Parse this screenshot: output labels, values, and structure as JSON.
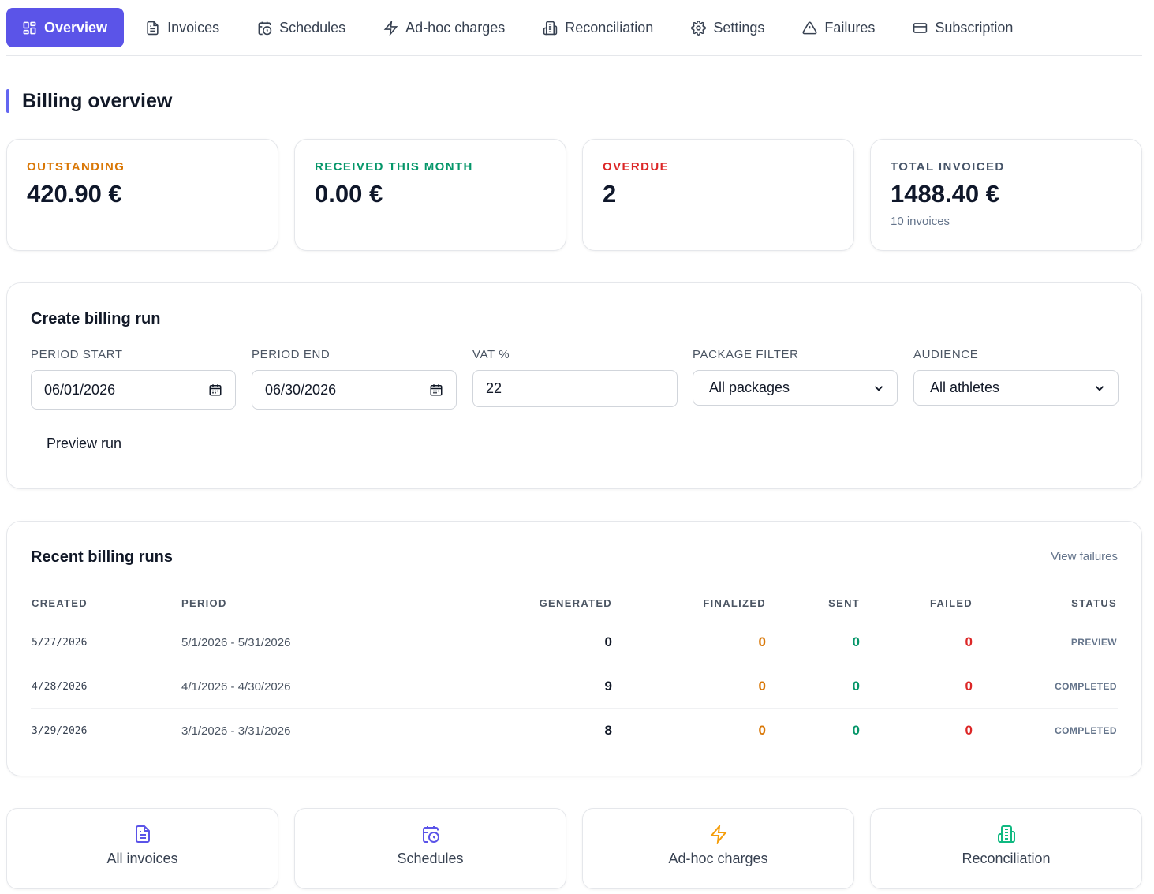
{
  "colors": {
    "accent": "#5b54e8",
    "outstanding": "#d97706",
    "received": "#059669",
    "overdue": "#dc2626",
    "muted": "#475569"
  },
  "tabs": [
    {
      "label": "Overview",
      "icon": "grid-icon",
      "active": true
    },
    {
      "label": "Invoices",
      "icon": "document-icon"
    },
    {
      "label": "Schedules",
      "icon": "calendar-clock-icon"
    },
    {
      "label": "Ad-hoc charges",
      "icon": "lightning-icon"
    },
    {
      "label": "Reconciliation",
      "icon": "building-icon"
    },
    {
      "label": "Settings",
      "icon": "gear-icon"
    },
    {
      "label": "Failures",
      "icon": "warning-icon"
    },
    {
      "label": "Subscription",
      "icon": "card-icon"
    }
  ],
  "page": {
    "title": "Billing overview"
  },
  "stats": [
    {
      "label": "OUTSTANDING",
      "value": "420.90 €",
      "sub": ""
    },
    {
      "label": "RECEIVED THIS MONTH",
      "value": "0.00 €",
      "sub": ""
    },
    {
      "label": "OVERDUE",
      "value": "2",
      "sub": ""
    },
    {
      "label": "TOTAL INVOICED",
      "value": "1488.40 €",
      "sub": "10 invoices"
    }
  ],
  "billing_run": {
    "title": "Create billing run",
    "period_start": {
      "label": "PERIOD START",
      "value": "06/01/2026"
    },
    "period_end": {
      "label": "PERIOD END",
      "value": "06/30/2026"
    },
    "vat": {
      "label": "VAT %",
      "value": "22"
    },
    "package_filter": {
      "label": "PACKAGE FILTER",
      "value": "All packages"
    },
    "audience": {
      "label": "AUDIENCE",
      "value": "All athletes"
    },
    "preview_label": "Preview run"
  },
  "recent_runs": {
    "title": "Recent billing runs",
    "view_failures": "View failures",
    "headers": {
      "created": "CREATED",
      "period": "PERIOD",
      "generated": "GENERATED",
      "finalized": "FINALIZED",
      "sent": "SENT",
      "failed": "FAILED",
      "status": "STATUS"
    },
    "rows": [
      {
        "created": "5/27/2026",
        "period": "5/1/2026 - 5/31/2026",
        "generated": "0",
        "finalized": "0",
        "sent": "0",
        "failed": "0",
        "status": "PREVIEW"
      },
      {
        "created": "4/28/2026",
        "period": "4/1/2026 - 4/30/2026",
        "generated": "9",
        "finalized": "0",
        "sent": "0",
        "failed": "0",
        "status": "COMPLETED"
      },
      {
        "created": "3/29/2026",
        "period": "3/1/2026 - 3/31/2026",
        "generated": "8",
        "finalized": "0",
        "sent": "0",
        "failed": "0",
        "status": "COMPLETED"
      }
    ]
  },
  "quick_links": [
    {
      "label": "All invoices",
      "icon": "document-icon"
    },
    {
      "label": "Schedules",
      "icon": "calendar-clock-icon"
    },
    {
      "label": "Ad-hoc charges",
      "icon": "lightning-icon"
    },
    {
      "label": "Reconciliation",
      "icon": "building-icon"
    }
  ]
}
